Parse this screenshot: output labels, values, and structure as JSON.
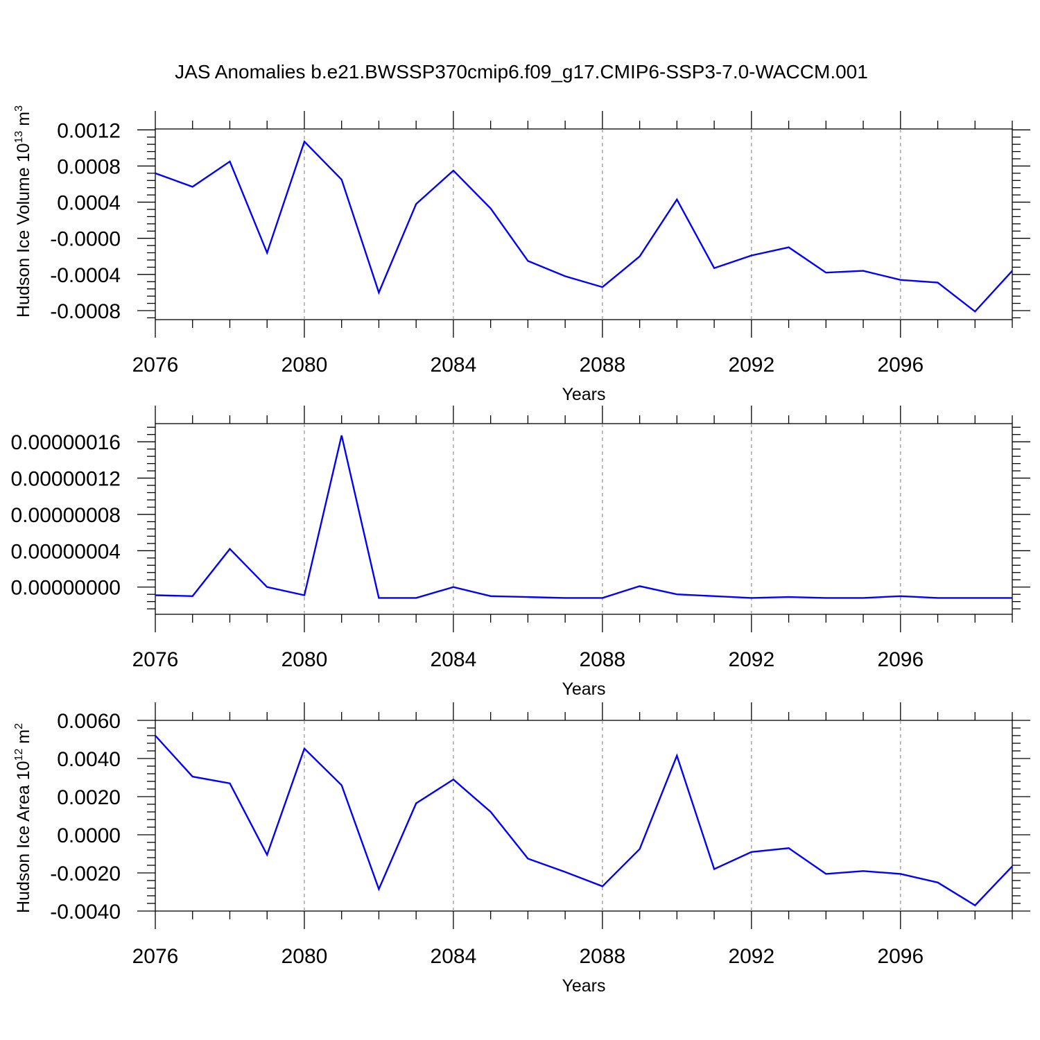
{
  "title": "JAS Anomalies b.e21.BWSSP370cmip6.f09_g17.CMIP6-SSP3-7.0-WACCM.001",
  "chart_data": [
    {
      "type": "line",
      "ylabel": "Hudson Ice Volume 10",
      "ylabel_sup": "13",
      "ylabel_unit": "m",
      "ylabel_unit_sup": "3",
      "xlabel": "Years",
      "xlim": [
        2076,
        2099
      ],
      "ylim": [
        -0.0009,
        0.00121
      ],
      "xticks": [
        "2076",
        "2080",
        "2084",
        "2088",
        "2092",
        "2096"
      ],
      "xtick_values": [
        2076,
        2080,
        2084,
        2088,
        2092,
        2096
      ],
      "yticks": [
        "0.0012",
        "0.0008",
        "0.0004",
        "-0.0000",
        "-0.0004",
        "-0.0008"
      ],
      "ytick_values": [
        0.0012,
        0.0008,
        0.0004,
        0.0,
        -0.0004,
        -0.0008
      ],
      "grid": "vertical dashed at labeled years",
      "x": [
        2076,
        2077,
        2078,
        2079,
        2080,
        2081,
        2082,
        2083,
        2084,
        2085,
        2086,
        2087,
        2088,
        2089,
        2090,
        2091,
        2092,
        2093,
        2094,
        2095,
        2096,
        2097,
        2098,
        2099
      ],
      "y": [
        0.00072,
        0.00057,
        0.00085,
        -0.00016,
        0.00107,
        0.00065,
        -0.0006,
        0.00038,
        0.00075,
        0.00033,
        -0.00025,
        -0.00042,
        -0.00054,
        -0.0002,
        0.00043,
        -0.00033,
        -0.00019,
        -0.0001,
        -0.00038,
        -0.00036,
        -0.00046,
        -0.00049,
        -0.00081,
        -0.00036
      ]
    },
    {
      "type": "line",
      "ylabel": "",
      "xlabel": "Years",
      "xlim": [
        2076,
        2099
      ],
      "ylim": [
        -3e-08,
        1.8e-07
      ],
      "xticks": [
        "2076",
        "2080",
        "2084",
        "2088",
        "2092",
        "2096"
      ],
      "xtick_values": [
        2076,
        2080,
        2084,
        2088,
        2092,
        2096
      ],
      "yticks": [
        "0.00000016",
        "0.00000012",
        "0.00000008",
        "0.00000004",
        "0.00000000"
      ],
      "ytick_values": [
        1.6e-07,
        1.2e-07,
        8e-08,
        4e-08,
        0.0
      ],
      "grid": "vertical dashed at labeled years",
      "x": [
        2076,
        2077,
        2078,
        2079,
        2080,
        2081,
        2082,
        2083,
        2084,
        2085,
        2086,
        2087,
        2088,
        2089,
        2090,
        2091,
        2092,
        2093,
        2094,
        2095,
        2096,
        2097,
        2098,
        2099
      ],
      "y": [
        -9e-09,
        -1e-08,
        4.2e-08,
        0.0,
        -9e-09,
        1.67e-07,
        -1.2e-08,
        -1.2e-08,
        0.0,
        -1e-08,
        -1.1e-08,
        -1.2e-08,
        -1.2e-08,
        1e-09,
        -8e-09,
        -1e-08,
        -1.2e-08,
        -1.1e-08,
        -1.2e-08,
        -1.2e-08,
        -1e-08,
        -1.2e-08,
        -1.2e-08,
        -1.2e-08
      ]
    },
    {
      "type": "line",
      "ylabel": "Hudson Ice Area 10",
      "ylabel_sup": "12",
      "ylabel_unit": "m",
      "ylabel_unit_sup": "2",
      "xlabel": "Years",
      "xlim": [
        2076,
        2099
      ],
      "ylim": [
        -0.004,
        0.006
      ],
      "xticks": [
        "2076",
        "2080",
        "2084",
        "2088",
        "2092",
        "2096"
      ],
      "xtick_values": [
        2076,
        2080,
        2084,
        2088,
        2092,
        2096
      ],
      "yticks": [
        "0.0060",
        "0.0040",
        "0.0020",
        "0.0000",
        "-0.0020",
        "-0.0040"
      ],
      "ytick_values": [
        0.006,
        0.004,
        0.002,
        0.0,
        -0.002,
        -0.004
      ],
      "grid": "vertical dashed at labeled years",
      "x": [
        2076,
        2077,
        2078,
        2079,
        2080,
        2081,
        2082,
        2083,
        2084,
        2085,
        2086,
        2087,
        2088,
        2089,
        2090,
        2091,
        2092,
        2093,
        2094,
        2095,
        2096,
        2097,
        2098,
        2099
      ],
      "y": [
        0.0052,
        0.00305,
        0.0027,
        -0.00105,
        0.00452,
        0.0026,
        -0.00285,
        0.00165,
        0.0029,
        0.0012,
        -0.00125,
        -0.00195,
        -0.0027,
        -0.00075,
        0.00415,
        -0.0018,
        -0.0009,
        -0.0007,
        -0.00205,
        -0.0019,
        -0.00205,
        -0.0025,
        -0.0037,
        -0.00165
      ]
    }
  ],
  "colors": {
    "series": "#0000ff",
    "grid": "#999999",
    "axes": "#000000"
  }
}
